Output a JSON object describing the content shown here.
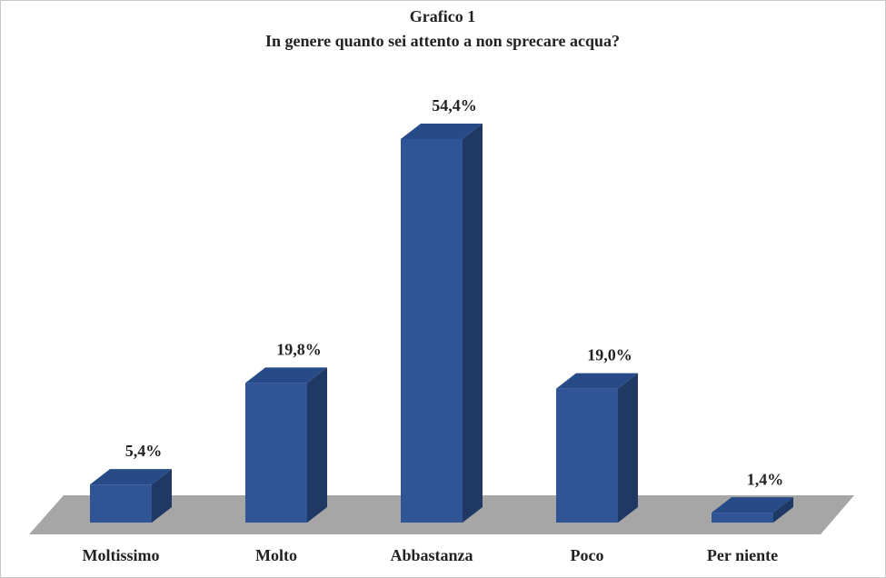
{
  "chart_data": {
    "type": "bar3d",
    "title": "Grafico 1",
    "subtitle": "In genere quanto sei attento a non sprecare acqua?",
    "categories": [
      "Moltissimo",
      "Molto",
      "Abbastanza",
      "Poco",
      "Per niente"
    ],
    "values": [
      5.4,
      19.8,
      54.4,
      19.0,
      1.4
    ],
    "value_labels": [
      "5,4%",
      "19,8%",
      "54,4%",
      "19,0%",
      "1,4%"
    ],
    "color": "#2f5597"
  }
}
